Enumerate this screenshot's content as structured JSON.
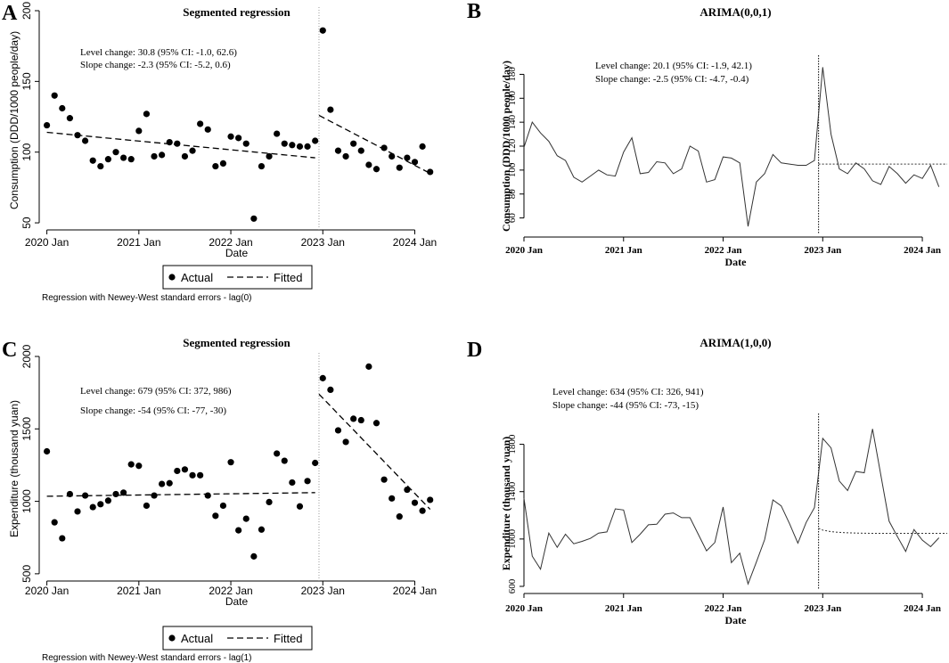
{
  "panels": [
    {
      "letter": "A",
      "type": "scatter",
      "style": "stata",
      "title": "Segmented regression",
      "xlabel": "Date",
      "ylabel": "Consumption (DDD/1000 people/day)",
      "ylim": [
        45,
        200
      ],
      "yticks": [
        50,
        100,
        150,
        200
      ],
      "xticks": [
        {
          "t": 0,
          "label": "2020 Jan"
        },
        {
          "t": 12,
          "label": "2021 Jan"
        },
        {
          "t": 24,
          "label": "2022 Jan"
        },
        {
          "t": 36,
          "label": "2023 Jan"
        },
        {
          "t": 48,
          "label": "2024 Jan"
        }
      ],
      "xlim": [
        -1,
        50.5
      ],
      "intervention": 35.5,
      "annotation": [
        "Level change: 30.8 (95% CI: -1.0, 62.6)",
        "Slope change: -2.3 (95% CI: -5.2, 0.6)"
      ],
      "legend": {
        "actual": "Actual",
        "fitted": "Fitted"
      },
      "footnote": "Regression with Newey-West standard errors - lag(0)",
      "actual": [
        119,
        140,
        131,
        124,
        112,
        108,
        94,
        90,
        95,
        100,
        96,
        95,
        115,
        127,
        97,
        98,
        107,
        106,
        97,
        101,
        120,
        116,
        90,
        92,
        111,
        110,
        106,
        53,
        90,
        97,
        113,
        106,
        105,
        104,
        104,
        108,
        186,
        130,
        101,
        97,
        106,
        101,
        91,
        88,
        103,
        97,
        89,
        96,
        93,
        104,
        86
      ],
      "fitted_segments": [
        {
          "t": [
            0,
            35
          ],
          "y": [
            114,
            96
          ]
        },
        {
          "t": [
            35.5,
            50
          ],
          "y": [
            126,
            85
          ]
        }
      ]
    },
    {
      "letter": "B",
      "type": "line",
      "style": "r",
      "title": "ARIMA(0,0,1)",
      "xlabel": "Date",
      "ylabel": "Consumption (DDD/1000 people/day)",
      "ylim": [
        50,
        190
      ],
      "yticks": [
        60,
        80,
        100,
        120,
        140,
        160,
        180
      ],
      "xticks": [
        {
          "t": 0,
          "label": "2020 Jan"
        },
        {
          "t": 12,
          "label": "2021 Jan"
        },
        {
          "t": 24,
          "label": "2022 Jan"
        },
        {
          "t": 36,
          "label": "2023 Jan"
        },
        {
          "t": 48,
          "label": "2024 Jan"
        }
      ],
      "xlim": [
        0,
        51
      ],
      "intervention": 35.5,
      "annotation": [
        "Level change: 20.1 (95% CI: -1.9, 42.1)",
        "Slope change: -2.5 (95% CI: -4.7, -0.4)"
      ],
      "actual": [
        119,
        140,
        131,
        124,
        112,
        108,
        94,
        90,
        95,
        100,
        96,
        95,
        115,
        127,
        97,
        98,
        107,
        106,
        97,
        101,
        120,
        116,
        90,
        92,
        111,
        110,
        106,
        53,
        90,
        97,
        113,
        106,
        105,
        104,
        104,
        108,
        186,
        130,
        101,
        97,
        106,
        101,
        91,
        88,
        103,
        97,
        89,
        96,
        93,
        104,
        86
      ],
      "counterfactual": {
        "t": [
          35.5,
          51
        ],
        "y": [
          105,
          105
        ]
      }
    },
    {
      "letter": "C",
      "type": "scatter",
      "style": "stata",
      "title": "Segmented regression",
      "xlabel": "Date",
      "ylabel": "Expenditure (thousand yuan)",
      "ylim": [
        450,
        2000
      ],
      "yticks": [
        500,
        1000,
        1500,
        2000
      ],
      "xticks": [
        {
          "t": 0,
          "label": "2020 Jan"
        },
        {
          "t": 12,
          "label": "2021 Jan"
        },
        {
          "t": 24,
          "label": "2022 Jan"
        },
        {
          "t": 36,
          "label": "2023 Jan"
        },
        {
          "t": 48,
          "label": "2024 Jan"
        }
      ],
      "xlim": [
        -1,
        50.5
      ],
      "intervention": 35.5,
      "annotation": [
        "Level change: 679 (95% CI: 372, 986)",
        "Slope change: -54 (95% CI: -77, -30)"
      ],
      "legend": {
        "actual": "Actual",
        "fitted": "Fitted"
      },
      "footnote": "Regression with Newey-West standard errors - lag(1)",
      "actual": [
        1345,
        855,
        745,
        1050,
        930,
        1040,
        960,
        980,
        1005,
        1050,
        1060,
        1255,
        1245,
        970,
        1040,
        1120,
        1125,
        1210,
        1220,
        1180,
        1180,
        1040,
        900,
        970,
        1270,
        800,
        880,
        620,
        805,
        995,
        1330,
        1280,
        1130,
        965,
        1140,
        1265,
        1850,
        1770,
        1490,
        1410,
        1570,
        1560,
        1930,
        1540,
        1150,
        1020,
        895,
        1080,
        990,
        935,
        1010
      ],
      "fitted_segments": [
        {
          "t": [
            0,
            35
          ],
          "y": [
            1035,
            1060
          ]
        },
        {
          "t": [
            35.5,
            50
          ],
          "y": [
            1740,
            945
          ]
        }
      ]
    },
    {
      "letter": "D",
      "type": "line",
      "style": "r",
      "title": "ARIMA(1,0,0)",
      "xlabel": "Date",
      "ylabel": "Expenditure (thousand yuan)",
      "ylim": [
        600,
        2000
      ],
      "yticks": [
        600,
        1000,
        1400,
        1800
      ],
      "xticks": [
        {
          "t": 0,
          "label": "2020 Jan"
        },
        {
          "t": 12,
          "label": "2021 Jan"
        },
        {
          "t": 24,
          "label": "2022 Jan"
        },
        {
          "t": 36,
          "label": "2023 Jan"
        },
        {
          "t": 48,
          "label": "2024 Jan"
        }
      ],
      "xlim": [
        0,
        51
      ],
      "intervention": 35.5,
      "annotation": [
        "Level change: 634 (95% CI: 326, 941)",
        "Slope change: -44 (95% CI: -73, -15)"
      ],
      "actual": [
        1345,
        855,
        745,
        1050,
        930,
        1040,
        960,
        980,
        1005,
        1050,
        1060,
        1255,
        1245,
        970,
        1040,
        1120,
        1125,
        1210,
        1220,
        1180,
        1180,
        1040,
        900,
        970,
        1270,
        800,
        880,
        620,
        805,
        995,
        1330,
        1280,
        1130,
        965,
        1140,
        1265,
        1850,
        1770,
        1490,
        1410,
        1570,
        1560,
        1930,
        1540,
        1150,
        1020,
        895,
        1080,
        990,
        935,
        1010
      ],
      "counterfactual": {
        "t": [
          35.5,
          36,
          37,
          38,
          39,
          40,
          42,
          45,
          48,
          51
        ],
        "y": [
          1090,
          1075,
          1062,
          1056,
          1052,
          1050,
          1048,
          1048,
          1048,
          1048
        ]
      }
    }
  ],
  "colors": {
    "ink": "#000000",
    "guide": "#9a9a9a",
    "series": "#333333"
  }
}
